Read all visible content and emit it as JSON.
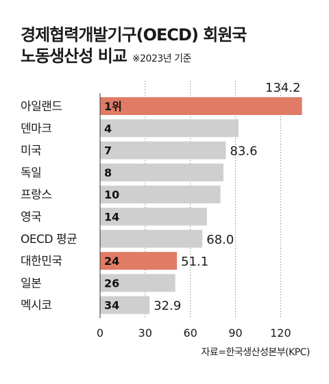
{
  "title": {
    "line1": "경제협력개발기구(OECD) 회원국",
    "line2": "노동생산성 비교",
    "note": "※2023년 기준"
  },
  "source": "자료=한국생산성본부(KPC)",
  "colors": {
    "highlight": "#e07b66",
    "bar": "#cfcfcf",
    "grid": "#888888",
    "axis": "#333333"
  },
  "chart_data": {
    "type": "bar",
    "orientation": "horizontal",
    "categories": [
      "아일랜드",
      "덴마크",
      "미국",
      "독일",
      "프랑스",
      "영국",
      "OECD 평균",
      "대한민국",
      "일본",
      "멕시코"
    ],
    "values": [
      134.2,
      92,
      83.6,
      82,
      80,
      71,
      68.0,
      51.1,
      50,
      32.9
    ],
    "rank_labels": [
      "1위",
      "4",
      "7",
      "8",
      "10",
      "14",
      "",
      "24",
      "26",
      "34"
    ],
    "value_labels": [
      "134.2",
      "",
      "83.6",
      "",
      "",
      "",
      "68.0",
      "51.1",
      "",
      "32.9"
    ],
    "highlighted": [
      "아일랜드",
      "대한민국"
    ],
    "xlim": [
      0,
      135
    ],
    "xticks": [
      0,
      30,
      60,
      90,
      120
    ],
    "grid": "vertical dotted"
  }
}
